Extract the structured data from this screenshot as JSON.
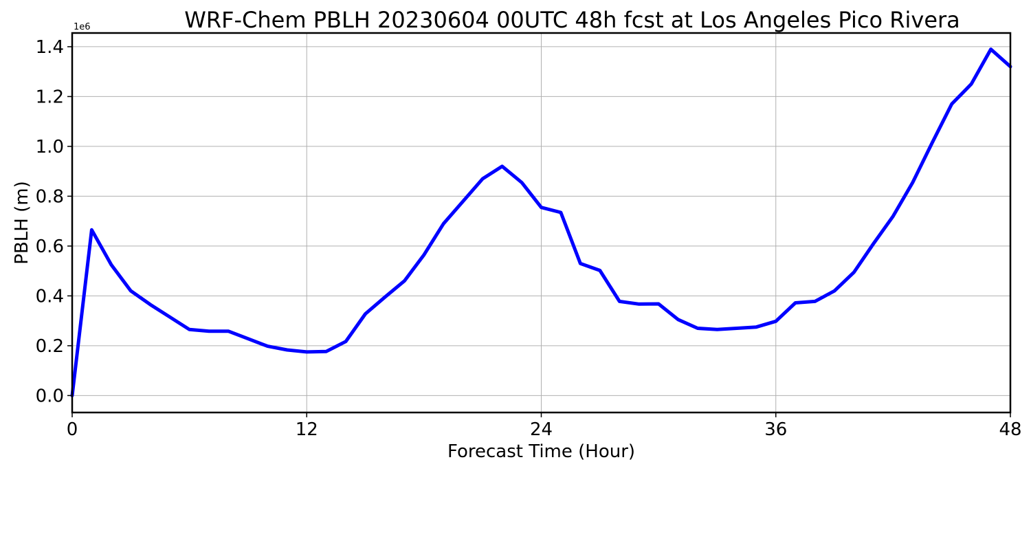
{
  "chart_data": {
    "type": "line",
    "title": "WRF-Chem PBLH  20230604 00UTC 48h fcst at Los Angeles Pico Rivera",
    "xlabel": "Forecast Time (Hour)",
    "ylabel": "PBLH  (m)",
    "y_offset_label": "1e6",
    "xlim": [
      0,
      48
    ],
    "ylim": [
      -0.068,
      1.455
    ],
    "xticks": [
      0,
      12,
      24,
      36,
      48
    ],
    "xtick_labels": [
      "0",
      "12",
      "24",
      "36",
      "48"
    ],
    "yticks": [
      0.0,
      0.2,
      0.4,
      0.6,
      0.8,
      1.0,
      1.2,
      1.4
    ],
    "ytick_labels": [
      "0.0",
      "0.2",
      "0.4",
      "0.6",
      "0.8",
      "1.0",
      "1.2",
      "1.4"
    ],
    "grid": true,
    "series": [
      {
        "color": "#0000ff",
        "x": [
          0,
          1,
          2,
          3,
          4,
          5,
          6,
          7,
          8,
          9,
          10,
          11,
          12,
          13,
          14,
          15,
          16,
          17,
          18,
          19,
          20,
          21,
          22,
          23,
          24,
          25,
          26,
          27,
          28,
          29,
          30,
          31,
          32,
          33,
          34,
          35,
          36,
          37,
          38,
          39,
          40,
          41,
          42,
          43,
          44,
          45,
          46,
          47,
          48
        ],
        "values": [
          0.0,
          0.665,
          0.525,
          0.42,
          0.365,
          0.315,
          0.265,
          0.258,
          0.258,
          0.228,
          0.198,
          0.183,
          0.175,
          0.177,
          0.217,
          0.328,
          0.395,
          0.46,
          0.565,
          0.69,
          0.78,
          0.87,
          0.92,
          0.855,
          0.755,
          0.735,
          0.53,
          0.502,
          0.378,
          0.367,
          0.368,
          0.305,
          0.27,
          0.265,
          0.27,
          0.275,
          0.298,
          0.372,
          0.378,
          0.42,
          0.495,
          0.61,
          0.72,
          0.855,
          1.015,
          1.17,
          1.25,
          1.39,
          1.32
        ]
      }
    ]
  }
}
